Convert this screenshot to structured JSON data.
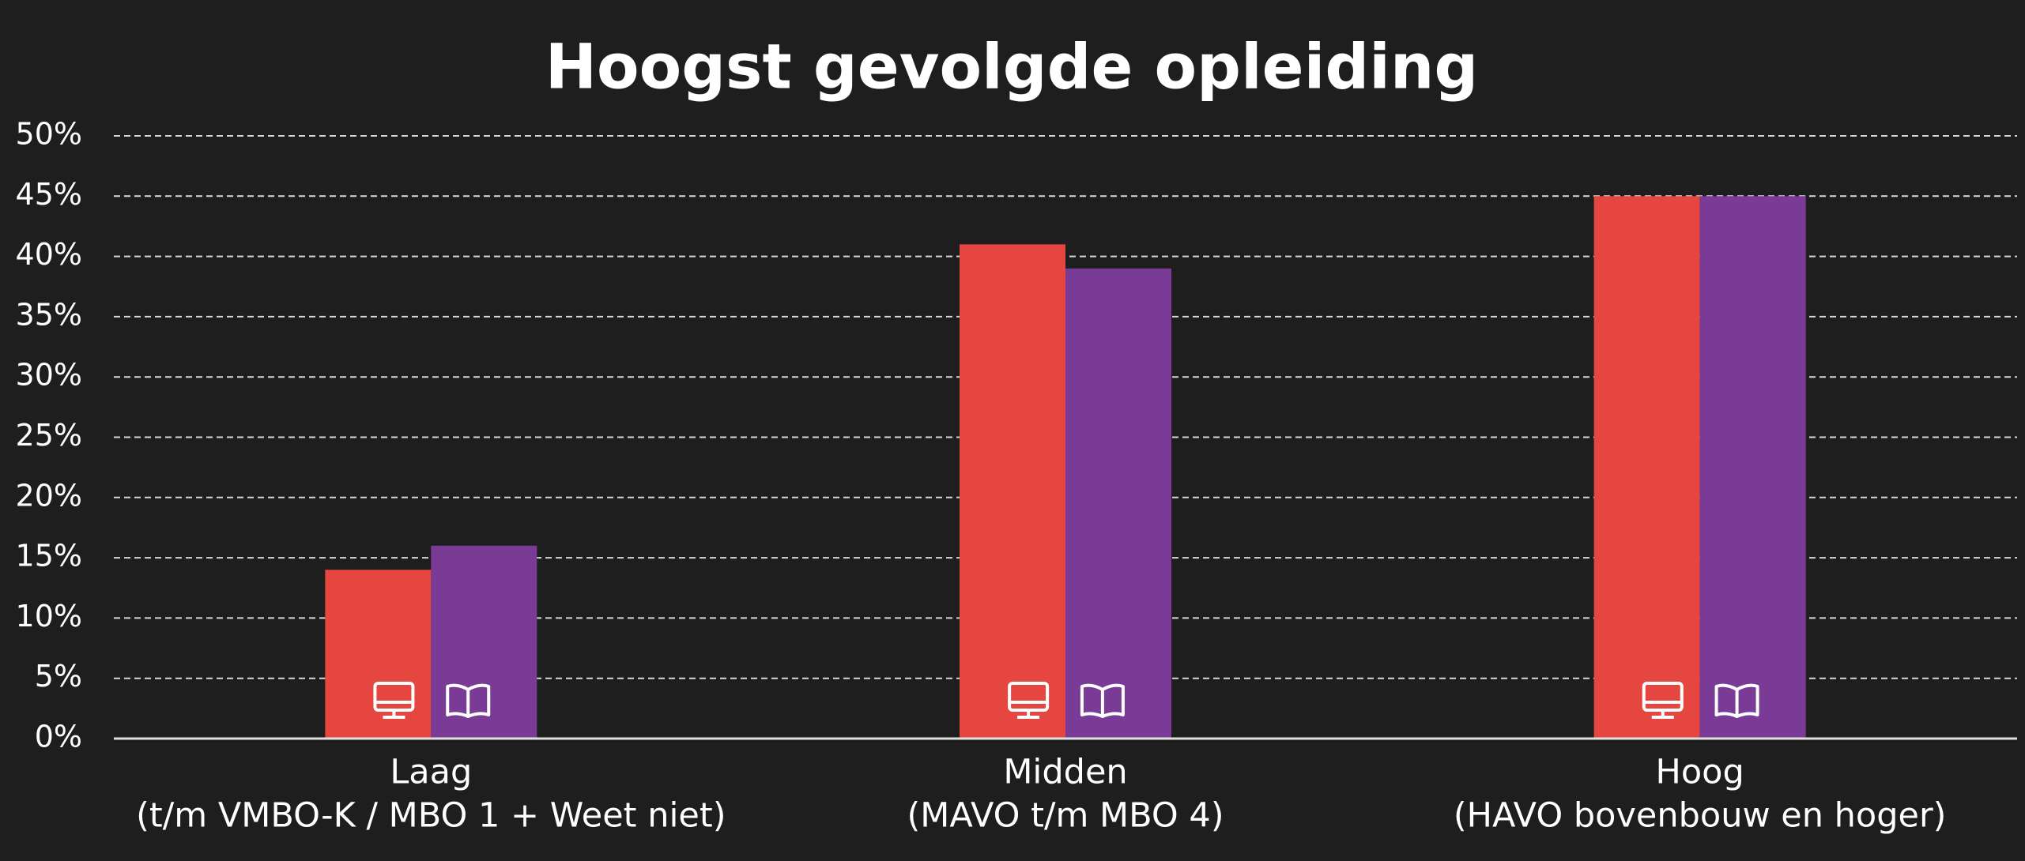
{
  "chart_data": {
    "type": "bar",
    "title": "Hoogst gevolgde opleiding",
    "categories": [
      [
        "Laag",
        "(t/m VMBO-K / MBO 1 + Weet niet)"
      ],
      [
        "Midden",
        "(MAVO t/m MBO 4)"
      ],
      [
        "Hoog",
        "(HAVO bovenbouw en hoger)"
      ]
    ],
    "series": [
      {
        "color": "#e5463f",
        "values": [
          14,
          41,
          45
        ]
      },
      {
        "color": "#7a3b97",
        "values": [
          16,
          39,
          45
        ]
      }
    ],
    "ylim": [
      0,
      50
    ],
    "yticks": [
      {
        "value": 0,
        "label": "0%"
      },
      {
        "value": 5,
        "label": "5%"
      },
      {
        "value": 10,
        "label": "10%"
      },
      {
        "value": 15,
        "label": "15%"
      },
      {
        "value": 20,
        "label": "20%"
      },
      {
        "value": 25,
        "label": "25%"
      },
      {
        "value": 30,
        "label": "30%"
      },
      {
        "value": 35,
        "label": "35%"
      },
      {
        "value": 40,
        "label": "40%"
      },
      {
        "value": 45,
        "label": "45%"
      },
      {
        "value": 50,
        "label": "50%"
      }
    ],
    "grid": true
  }
}
